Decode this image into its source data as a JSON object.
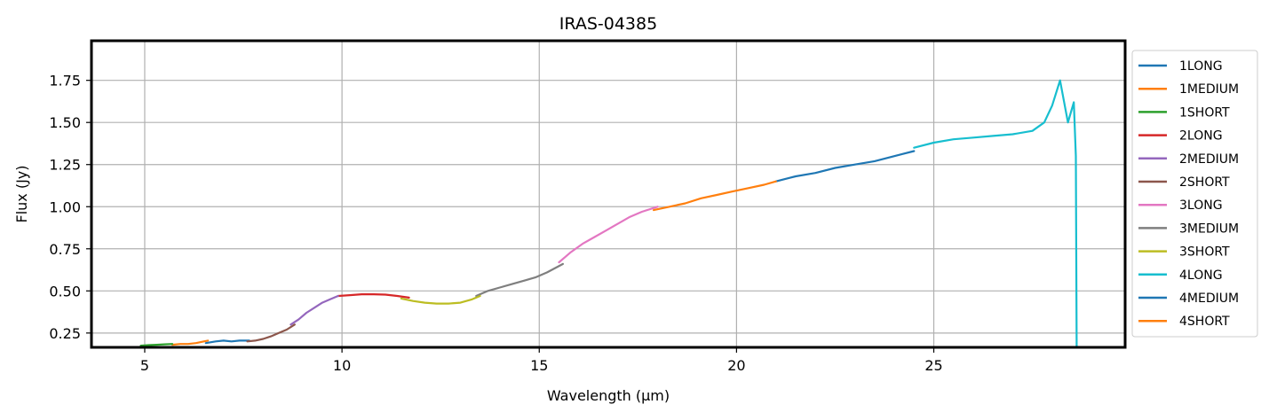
{
  "chart_data": {
    "type": "line",
    "title": "IRAS-04385",
    "xlabel": "Wavelength (μm)",
    "ylabel": "Flux (Jy)",
    "xlim": [
      3.65,
      29.85
    ],
    "ylim": [
      0.165,
      1.985
    ],
    "xticks": [
      5,
      10,
      15,
      20,
      25
    ],
    "xtick_labels": [
      "5",
      "10",
      "15",
      "20",
      "25"
    ],
    "yticks": [
      0.25,
      0.5,
      0.75,
      1.0,
      1.25,
      1.5,
      1.75
    ],
    "ytick_labels": [
      "0.25",
      "0.50",
      "0.75",
      "1.00",
      "1.25",
      "1.50",
      "1.75"
    ],
    "grid": true,
    "legend_placement": "outside-right",
    "series": [
      {
        "name": "1LONG",
        "color": "#1f77b4",
        "x": [
          6.55,
          6.8,
          7.0,
          7.2,
          7.4,
          7.65
        ],
        "y": [
          0.19,
          0.2,
          0.205,
          0.2,
          0.205,
          0.205
        ]
      },
      {
        "name": "1MEDIUM",
        "color": "#ff7f0e",
        "x": [
          5.7,
          5.9,
          6.1,
          6.3,
          6.5,
          6.6
        ],
        "y": [
          0.18,
          0.185,
          0.185,
          0.19,
          0.2,
          0.205
        ]
      },
      {
        "name": "1SHORT",
        "color": "#2ca02c",
        "x": [
          4.9,
          5.1,
          5.3,
          5.5,
          5.7
        ],
        "y": [
          0.175,
          0.178,
          0.18,
          0.183,
          0.185
        ]
      },
      {
        "name": "2LONG",
        "color": "#d62728",
        "x": [
          9.9,
          10.2,
          10.5,
          10.8,
          11.1,
          11.4,
          11.7
        ],
        "y": [
          0.47,
          0.475,
          0.48,
          0.48,
          0.478,
          0.47,
          0.46
        ]
      },
      {
        "name": "2MEDIUM",
        "color": "#9467bd",
        "x": [
          8.7,
          8.9,
          9.1,
          9.3,
          9.5,
          9.7,
          9.9
        ],
        "y": [
          0.3,
          0.33,
          0.37,
          0.4,
          0.43,
          0.45,
          0.47
        ]
      },
      {
        "name": "2SHORT",
        "color": "#8c564b",
        "x": [
          7.6,
          7.8,
          8.0,
          8.2,
          8.4,
          8.6,
          8.8
        ],
        "y": [
          0.2,
          0.205,
          0.215,
          0.23,
          0.25,
          0.27,
          0.3
        ]
      },
      {
        "name": "3LONG",
        "color": "#e377c2",
        "x": [
          15.5,
          15.8,
          16.1,
          16.4,
          16.7,
          17.0,
          17.3,
          17.6,
          18.0
        ],
        "y": [
          0.67,
          0.73,
          0.78,
          0.82,
          0.86,
          0.9,
          0.94,
          0.97,
          1.0
        ]
      },
      {
        "name": "3MEDIUM",
        "color": "#7f7f7f",
        "x": [
          13.4,
          13.7,
          14.0,
          14.3,
          14.6,
          14.9,
          15.2,
          15.6
        ],
        "y": [
          0.47,
          0.5,
          0.52,
          0.54,
          0.56,
          0.58,
          0.61,
          0.66
        ]
      },
      {
        "name": "3SHORT",
        "color": "#bcbd22",
        "x": [
          11.5,
          11.8,
          12.1,
          12.4,
          12.7,
          13.0,
          13.3,
          13.5
        ],
        "y": [
          0.455,
          0.44,
          0.43,
          0.425,
          0.425,
          0.43,
          0.45,
          0.47
        ]
      },
      {
        "name": "4LONG",
        "color": "#17becf",
        "x": [
          24.5,
          25.0,
          25.5,
          26.0,
          26.5,
          27.0,
          27.5,
          27.8,
          28.0,
          28.2,
          28.4,
          28.55,
          28.6,
          28.62
        ],
        "y": [
          1.35,
          1.38,
          1.4,
          1.41,
          1.42,
          1.43,
          1.45,
          1.5,
          1.6,
          1.75,
          1.5,
          1.62,
          1.3,
          0.17
        ]
      },
      {
        "name": "4MEDIUM",
        "color": "#1f77b4",
        "x": [
          21.0,
          21.5,
          22.0,
          22.5,
          23.0,
          23.5,
          24.0,
          24.5
        ],
        "y": [
          1.15,
          1.18,
          1.2,
          1.23,
          1.25,
          1.27,
          1.3,
          1.33
        ]
      },
      {
        "name": "4SHORT",
        "color": "#ff7f0e",
        "x": [
          17.9,
          18.3,
          18.7,
          19.1,
          19.5,
          19.9,
          20.3,
          20.7,
          21.0
        ],
        "y": [
          0.98,
          1.0,
          1.02,
          1.05,
          1.07,
          1.09,
          1.11,
          1.13,
          1.15
        ]
      }
    ]
  }
}
